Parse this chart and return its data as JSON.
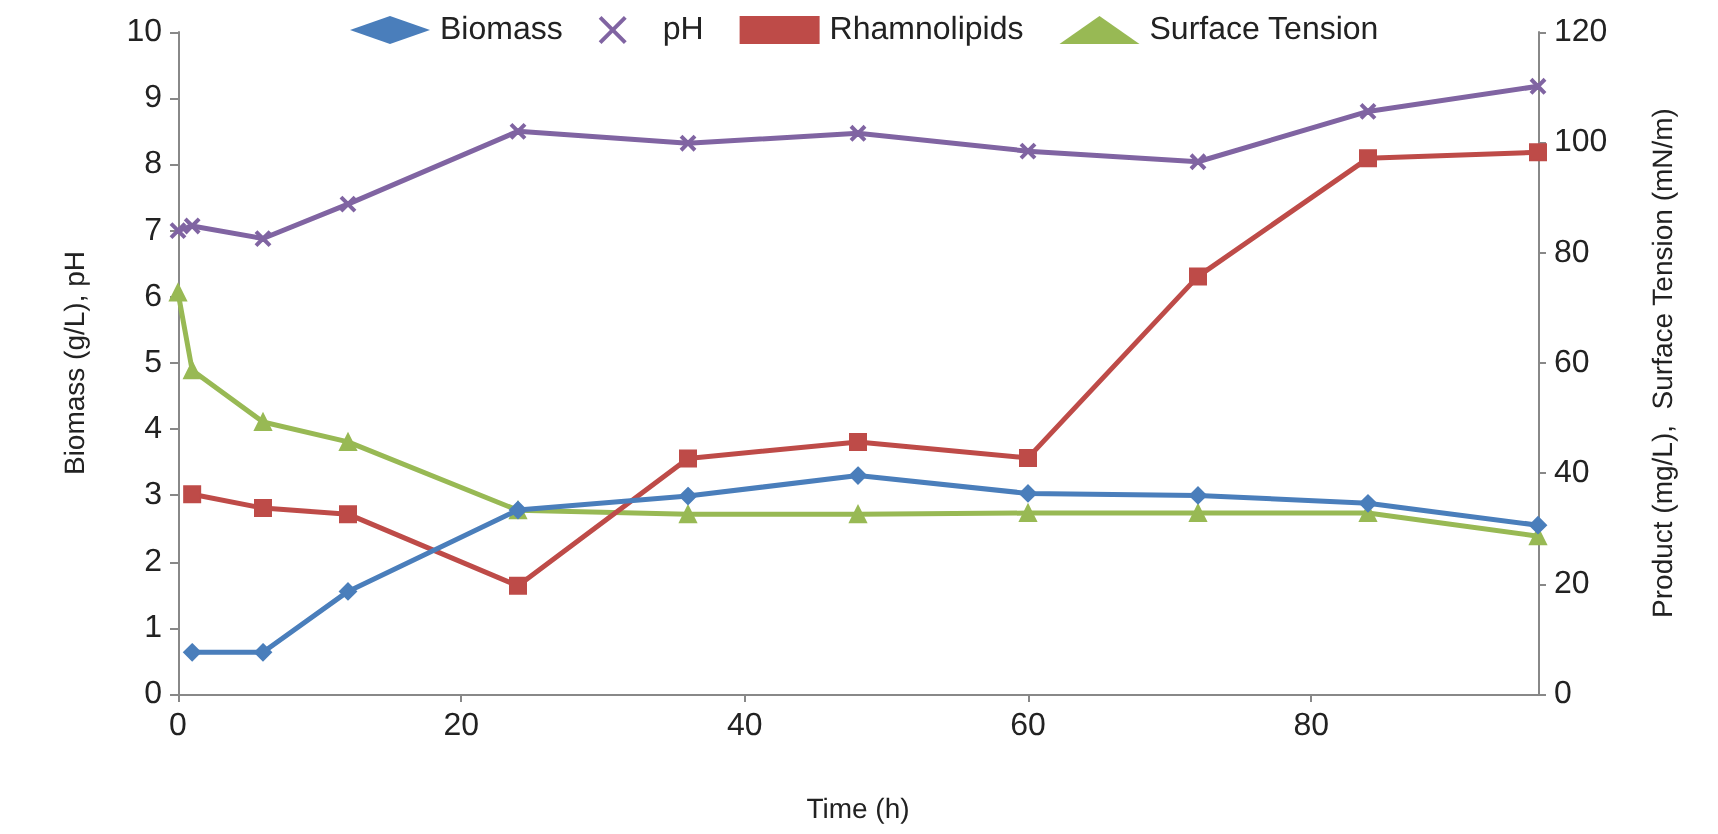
{
  "chart_data": {
    "type": "line",
    "xlabel": "Time (h)",
    "ylabel": "Biomass (g/L), pH",
    "y2label": "Product (mg/L),  Surface Tension (mN/m)",
    "xlim": [
      0,
      96
    ],
    "xticks": [
      0,
      20,
      40,
      60,
      80
    ],
    "ylim": [
      0,
      10
    ],
    "yticks": [
      0,
      1,
      2,
      3,
      4,
      5,
      6,
      7,
      8,
      9,
      10
    ],
    "y2lim": [
      0,
      120
    ],
    "y2ticks": [
      0,
      20,
      40,
      60,
      80,
      100,
      120
    ],
    "grid": false,
    "legend": "top",
    "series": [
      {
        "name": "Biomass",
        "color": "#4a7ebb",
        "marker": "diamond",
        "x": [
          1,
          6,
          12,
          24,
          36,
          48,
          60,
          72,
          84,
          96
        ],
        "values": [
          0.63,
          0.63,
          1.55,
          2.78,
          2.99,
          3.3,
          3.03,
          3.0,
          2.88,
          2.55
        ]
      },
      {
        "name": "pH",
        "color": "#8064a2",
        "marker": "cross",
        "x": [
          0,
          1,
          6,
          12,
          24,
          36,
          48,
          60,
          72,
          84,
          96
        ],
        "values": [
          7.0,
          7.07,
          6.88,
          7.4,
          8.5,
          8.32,
          8.47,
          8.2,
          8.04,
          8.8,
          9.18
        ]
      },
      {
        "name": "Rhamnolipids",
        "color": "#be4b48",
        "marker": "square",
        "axis": "y2",
        "x": [
          1,
          6,
          12,
          24,
          36,
          48,
          60,
          72,
          84,
          96
        ],
        "values": [
          36.2,
          33.7,
          32.6,
          19.6,
          42.7,
          45.7,
          42.8,
          75.7,
          97.1,
          98.2
        ]
      },
      {
        "name": "Surface Tension",
        "color": "#98b954",
        "marker": "triangle",
        "axis": "y2",
        "x": [
          0,
          1,
          6,
          12,
          24,
          36,
          48,
          60,
          72,
          84,
          96
        ],
        "values": [
          72.8,
          58.7,
          49.3,
          45.7,
          33.3,
          32.6,
          32.6,
          32.8,
          32.8,
          32.8,
          28.6
        ]
      }
    ]
  }
}
